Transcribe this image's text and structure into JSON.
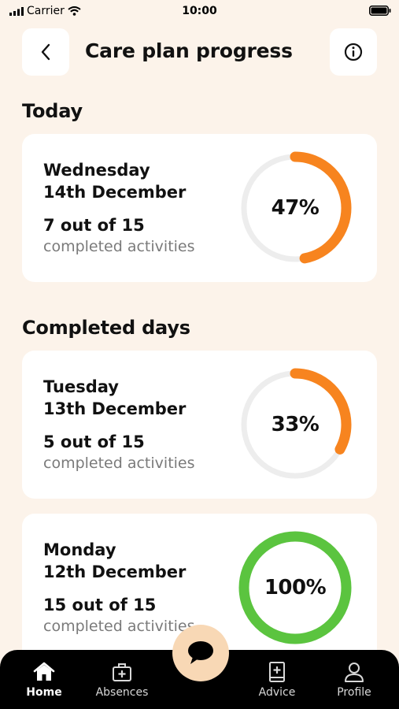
{
  "status_bar": {
    "carrier": "Carrier",
    "time": "10:00"
  },
  "header": {
    "title": "Care plan progress"
  },
  "sections": {
    "today": "Today",
    "completed": "Completed days"
  },
  "colors": {
    "accent_orange": "#F7841F",
    "accent_green": "#5BC43F",
    "ring_track": "#EDEDED",
    "background": "#FCF3EA"
  },
  "cards": [
    {
      "day": "Wednesday",
      "date": "14th December",
      "count": "7 out of 15",
      "subtitle": "completed activities",
      "percent_label": "47%",
      "percent": 47,
      "color": "#F7841F"
    },
    {
      "day": "Tuesday",
      "date": "13th December",
      "count": "5 out of 15",
      "subtitle": "completed activities",
      "percent_label": "33%",
      "percent": 33,
      "color": "#F7841F"
    },
    {
      "day": "Monday",
      "date": "12th December",
      "count": "15 out of 15",
      "subtitle": "completed activities",
      "percent_label": "100%",
      "percent": 100,
      "color": "#5BC43F"
    }
  ],
  "tabbar": {
    "tabs": [
      {
        "label": "Home",
        "icon": "home-icon",
        "active": true
      },
      {
        "label": "Absences",
        "icon": "medical-bag-icon",
        "active": false
      },
      {
        "label": "Advice",
        "icon": "medical-book-icon",
        "active": false
      },
      {
        "label": "Profile",
        "icon": "person-icon",
        "active": false
      }
    ],
    "chat_icon": "chat-bubble-icon"
  }
}
